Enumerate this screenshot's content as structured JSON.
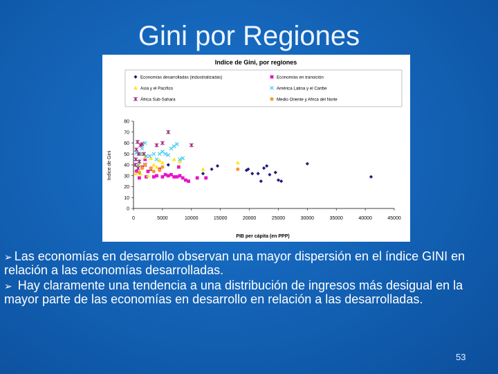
{
  "slide": {
    "title": "Gini por Regiones",
    "page_number": "53",
    "bullets": [
      "Las economías en desarrollo observan una mayor dispersión en el índice GINI en relación a las economías desarrolladas.",
      "Hay claramente una tendencia a una distribución de ingresos más desigual en la mayor parte de las economías en desarrollo en relación a las desarrolladas."
    ],
    "bullet_icon": "arrow-bullet-icon"
  },
  "chart_data": {
    "type": "scatter",
    "title": "Indice de Gini, por regiones",
    "xlabel": "PIB per cápita (en PPP)",
    "ylabel": "Indice de Gini",
    "xlim": [
      0,
      45000
    ],
    "ylim": [
      0,
      80
    ],
    "x_ticks": [
      "0",
      "5000",
      "10000",
      "15000",
      "20000",
      "25000",
      "30000",
      "35000",
      "40000",
      "45000"
    ],
    "y_ticks": [
      "0",
      "10",
      "20",
      "30",
      "40",
      "50",
      "60",
      "70",
      "80"
    ],
    "grid": false,
    "legend_position": "top",
    "series": [
      {
        "name": "Economías desarrolladas (industrializadas)",
        "marker": "diamond",
        "color": "#1c1c80",
        "points": [
          [
            6000,
            40
          ],
          [
            12000,
            32
          ],
          [
            13500,
            36
          ],
          [
            14500,
            39
          ],
          [
            19500,
            35
          ],
          [
            19800,
            36
          ],
          [
            20500,
            32
          ],
          [
            21500,
            32
          ],
          [
            22000,
            25
          ],
          [
            22500,
            37
          ],
          [
            23000,
            39
          ],
          [
            23500,
            31
          ],
          [
            24500,
            33
          ],
          [
            25000,
            26
          ],
          [
            25500,
            25
          ],
          [
            30000,
            41
          ],
          [
            41000,
            29
          ]
        ]
      },
      {
        "name": "Economías en transición",
        "marker": "square",
        "color": "#e815c8",
        "points": [
          [
            500,
            34
          ],
          [
            1000,
            28
          ],
          [
            1500,
            38
          ],
          [
            2000,
            45
          ],
          [
            2200,
            29
          ],
          [
            2500,
            34
          ],
          [
            3500,
            29
          ],
          [
            4000,
            30
          ],
          [
            4500,
            36
          ],
          [
            5000,
            29
          ],
          [
            5500,
            31
          ],
          [
            6000,
            30
          ],
          [
            6500,
            31
          ],
          [
            7000,
            29
          ],
          [
            7500,
            29
          ],
          [
            7800,
            38
          ],
          [
            8000,
            30
          ],
          [
            8500,
            28
          ],
          [
            9000,
            26
          ],
          [
            9500,
            25
          ],
          [
            11000,
            28
          ],
          [
            12500,
            28
          ]
        ]
      },
      {
        "name": "Asia y el Pacífico",
        "marker": "triangle",
        "color": "#ffe61a",
        "points": [
          [
            400,
            32
          ],
          [
            700,
            39
          ],
          [
            1000,
            40
          ],
          [
            1200,
            32
          ],
          [
            1500,
            50
          ],
          [
            2000,
            47
          ],
          [
            2500,
            30
          ],
          [
            3000,
            46
          ],
          [
            3500,
            40
          ],
          [
            4000,
            38
          ],
          [
            4500,
            44
          ],
          [
            5000,
            42
          ],
          [
            7000,
            45
          ],
          [
            8000,
            43
          ],
          [
            12000,
            36
          ],
          [
            18000,
            42
          ]
        ]
      },
      {
        "name": "América Latina y el Caribe",
        "marker": "x",
        "color": "#3cc8ee",
        "points": [
          [
            500,
            51
          ],
          [
            800,
            40
          ],
          [
            1200,
            50
          ],
          [
            1500,
            55
          ],
          [
            2000,
            60
          ],
          [
            2200,
            48
          ],
          [
            2800,
            48
          ],
          [
            3500,
            50
          ],
          [
            4000,
            45
          ],
          [
            4500,
            50
          ],
          [
            5000,
            52
          ],
          [
            5500,
            50
          ],
          [
            6000,
            49
          ],
          [
            6500,
            55
          ],
          [
            7000,
            57
          ],
          [
            7500,
            59
          ],
          [
            8000,
            45
          ],
          [
            8500,
            46
          ]
        ]
      },
      {
        "name": "África Sub-Sahara",
        "marker": "star",
        "color": "#9a2478",
        "points": [
          [
            300,
            40
          ],
          [
            400,
            45
          ],
          [
            500,
            54
          ],
          [
            700,
            61
          ],
          [
            800,
            37
          ],
          [
            900,
            50
          ],
          [
            1000,
            43
          ],
          [
            1200,
            58
          ],
          [
            1500,
            59
          ],
          [
            1800,
            50
          ],
          [
            2000,
            40
          ],
          [
            3000,
            36
          ],
          [
            4000,
            58
          ],
          [
            5000,
            60
          ],
          [
            6000,
            70
          ],
          [
            10000,
            58
          ]
        ]
      },
      {
        "name": "Medio Oriente y Africa del Norte",
        "marker": "circle",
        "color": "#f59a30",
        "points": [
          [
            1000,
            33
          ],
          [
            1500,
            37
          ],
          [
            2000,
            40
          ],
          [
            3000,
            37
          ],
          [
            3500,
            34
          ],
          [
            4500,
            35
          ],
          [
            5000,
            38
          ],
          [
            18000,
            36
          ]
        ]
      }
    ]
  }
}
